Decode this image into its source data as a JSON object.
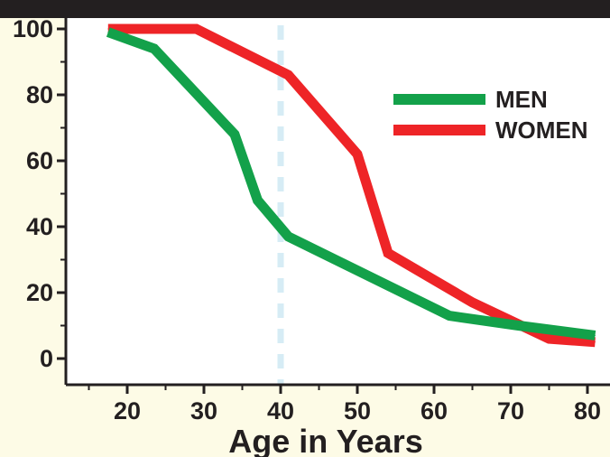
{
  "chart_data": {
    "type": "line",
    "title": "",
    "xlabel": "Age in Years",
    "ylabel": "",
    "xlim": [
      12,
      82
    ],
    "ylim": [
      -8,
      100
    ],
    "x_ticks": [
      20,
      30,
      40,
      50,
      60,
      70,
      80
    ],
    "y_ticks": [
      0,
      20,
      40,
      60,
      80,
      100
    ],
    "grid": false,
    "legend": "right",
    "reference_line": {
      "x": 40,
      "color": "#d6ecf5",
      "style": "dashed"
    },
    "series": [
      {
        "name": "MEN",
        "color": "#13a14a",
        "points": [
          [
            17.5,
            99
          ],
          [
            23.5,
            94
          ],
          [
            34,
            68
          ],
          [
            37,
            48
          ],
          [
            41,
            37
          ],
          [
            62,
            13
          ],
          [
            71,
            10
          ],
          [
            81,
            7
          ]
        ]
      },
      {
        "name": "WOMEN",
        "color": "#ee2427",
        "points": [
          [
            17.5,
            100
          ],
          [
            29,
            100
          ],
          [
            41,
            86
          ],
          [
            50,
            62
          ],
          [
            54,
            32
          ],
          [
            65,
            17
          ],
          [
            75,
            6
          ],
          [
            81,
            5
          ]
        ]
      }
    ]
  }
}
